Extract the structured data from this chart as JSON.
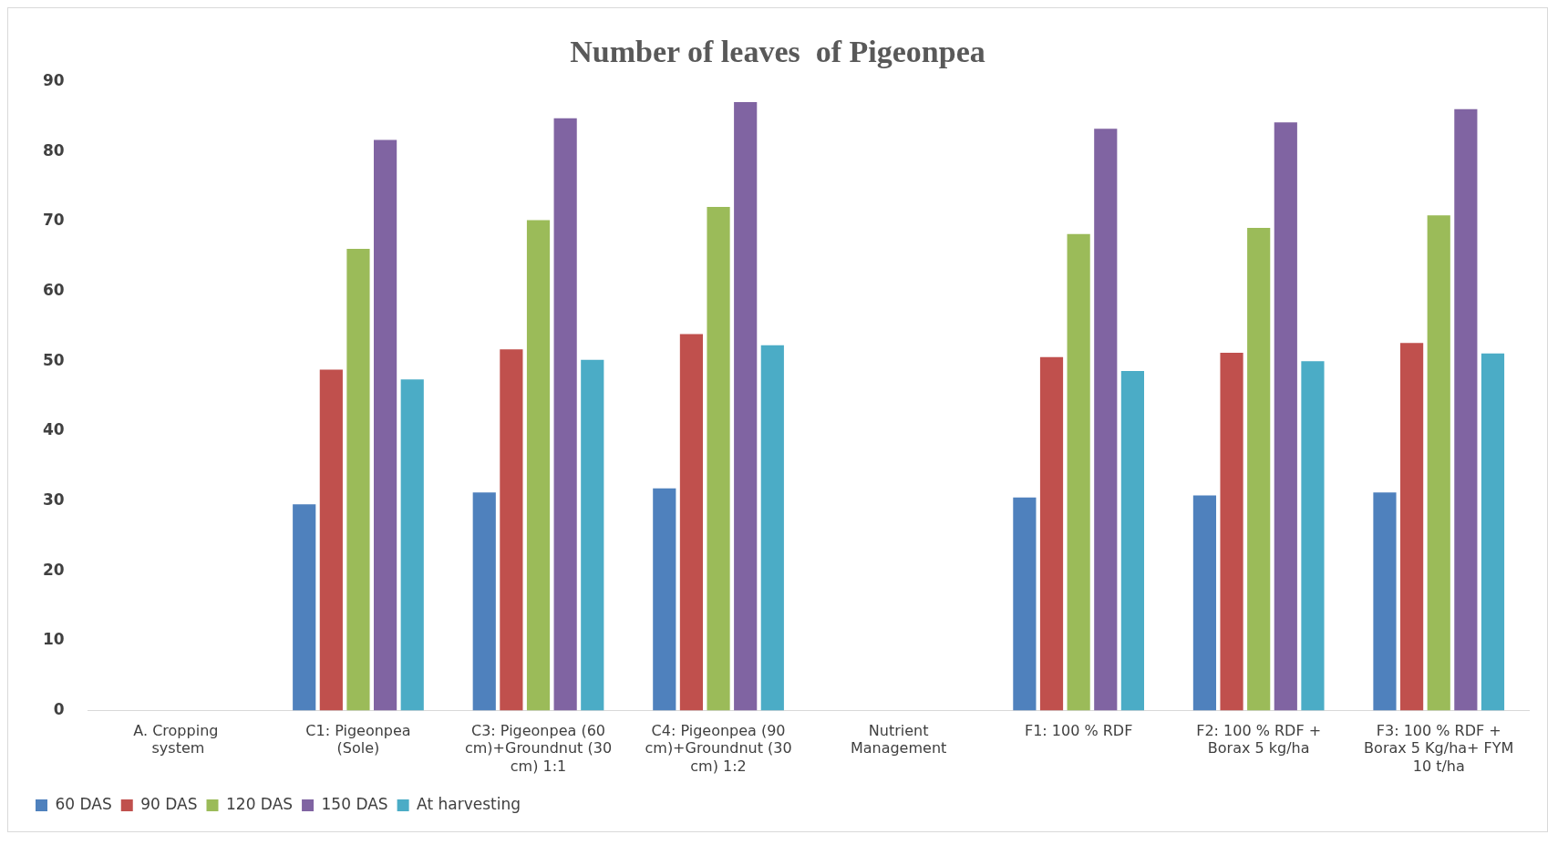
{
  "chart_data": {
    "type": "bar",
    "title": "Number of leaves  of Pigeonpea",
    "categories": [
      "A. Cropping  system",
      "C1: Pigeonpea (Sole)",
      "C3: Pigeonpea (60 cm)+Groundnut (30 cm) 1:1",
      "C4: Pigeonpea (90 cm)+Groundnut (30 cm) 1:2",
      "Nutrient Management",
      "F1: 100 % RDF",
      "F2: 100 % RDF + Borax 5 kg/ha",
      "F3: 100 % RDF + Borax 5 Kg/ha+ FYM 10 t/ha"
    ],
    "series": [
      {
        "name": "60 DAS",
        "color": "#4f81bd",
        "values": [
          null,
          29.5,
          31.2,
          31.8,
          null,
          30.5,
          30.8,
          31.2
        ]
      },
      {
        "name": "90 DAS",
        "color": "#c0504d",
        "values": [
          null,
          48.8,
          51.7,
          53.9,
          null,
          50.6,
          51.2,
          52.6
        ]
      },
      {
        "name": "120 DAS",
        "color": "#9bbb59",
        "values": [
          null,
          66.1,
          70.2,
          72.1,
          null,
          68.2,
          69.1,
          70.9
        ]
      },
      {
        "name": "150 DAS",
        "color": "#8064a2",
        "values": [
          null,
          81.7,
          84.8,
          87.1,
          null,
          83.3,
          84.2,
          86.1
        ]
      },
      {
        "name": "At harvesting",
        "color": "#4bacc6",
        "values": [
          null,
          47.4,
          50.2,
          52.3,
          null,
          48.6,
          50.0,
          51.1
        ]
      }
    ],
    "ylim": [
      0,
      90
    ],
    "yticks": [
      0,
      10,
      20,
      30,
      40,
      50,
      60,
      70,
      80,
      90
    ],
    "grid": false,
    "legend": "bottom left"
  }
}
